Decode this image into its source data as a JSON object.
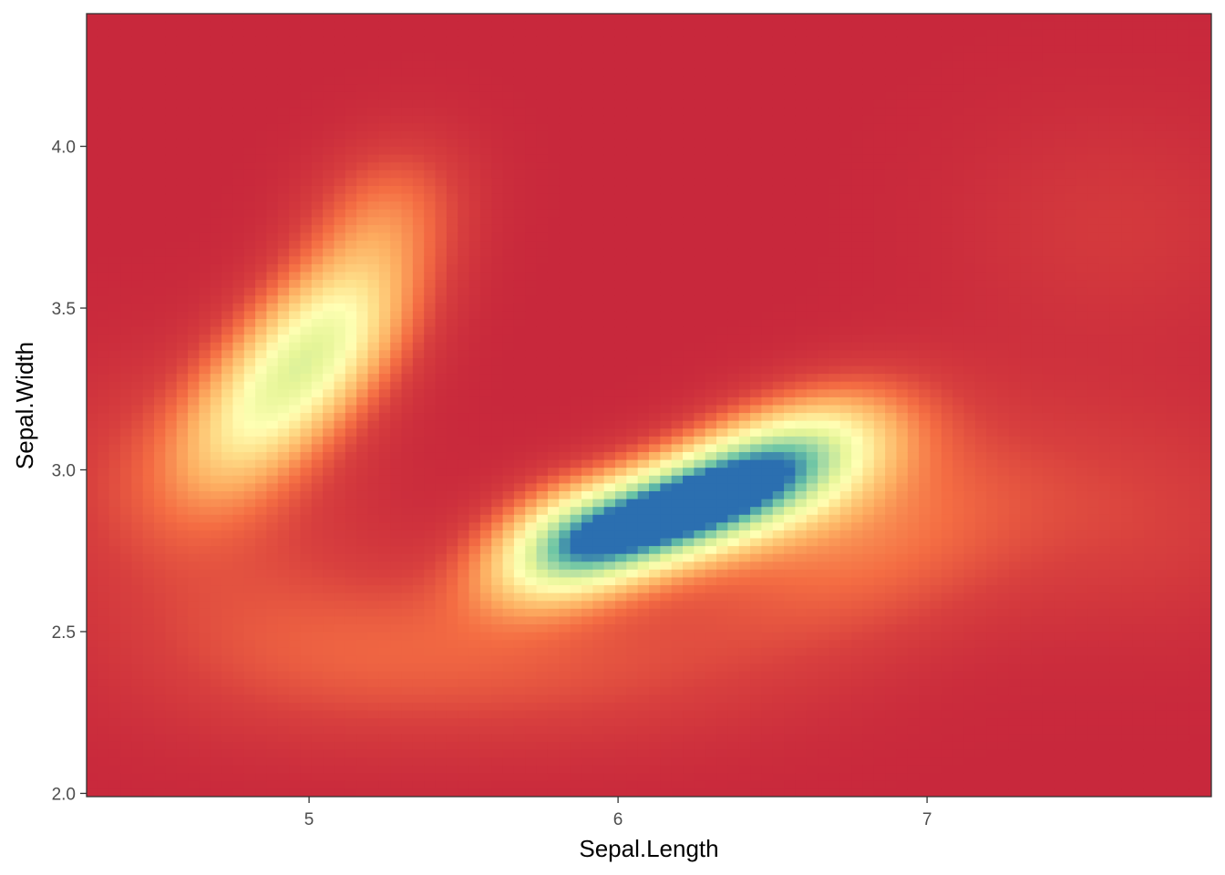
{
  "chart_data": {
    "type": "heatmap",
    "subtype": "2d-density",
    "xlabel": "Sepal.Length",
    "ylabel": "Sepal.Width",
    "xlim": [
      4.28,
      7.92
    ],
    "ylim": [
      1.99,
      4.41
    ],
    "x_ticks": [
      5,
      6,
      7
    ],
    "x_tick_labels": [
      "5",
      "6",
      "7"
    ],
    "y_ticks": [
      2.0,
      2.5,
      3.0,
      3.5,
      4.0
    ],
    "y_tick_labels": [
      "2.0",
      "2.5",
      "3.0",
      "3.5",
      "4.0"
    ],
    "grid": false,
    "legend": "none",
    "colormap": "Spectral",
    "colors": {
      "low": "#c8283c",
      "mid_low": "#f46d43",
      "mid": "#fee08b",
      "mid_high": "#e6f598",
      "high_green": "#66c2a5",
      "peak": "#2b6fb0"
    },
    "density_peaks": [
      {
        "x": 6.1,
        "y": 2.85,
        "level": "highest"
      },
      {
        "x": 5.05,
        "y": 3.42,
        "level": "moderate"
      }
    ]
  }
}
